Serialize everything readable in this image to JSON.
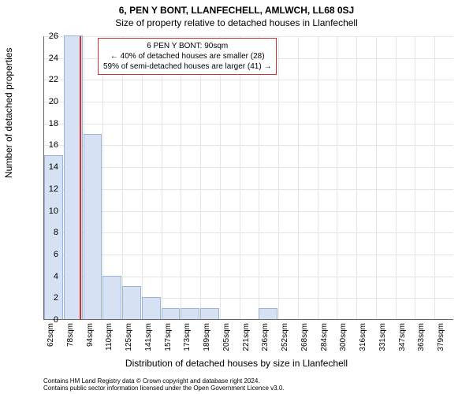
{
  "title_main": "6, PEN Y BONT, LLANFECHELL, AMLWCH, LL68 0SJ",
  "title_sub": "Size of property relative to detached houses in Llanfechell",
  "ylabel": "Number of detached properties",
  "xlabel": "Distribution of detached houses by size in Llanfechell",
  "histogram": {
    "type": "histogram",
    "ymin": 0,
    "ymax": 26,
    "ytick_step": 2,
    "categories": [
      "62sqm",
      "78sqm",
      "94sqm",
      "110sqm",
      "125sqm",
      "141sqm",
      "157sqm",
      "173sqm",
      "189sqm",
      "205sqm",
      "221sqm",
      "236sqm",
      "252sqm",
      "268sqm",
      "284sqm",
      "300sqm",
      "316sqm",
      "331sqm",
      "347sqm",
      "363sqm",
      "379sqm"
    ],
    "values": [
      15,
      26,
      17,
      4,
      3,
      2,
      1,
      1,
      1,
      0,
      0,
      1,
      0,
      0,
      0,
      0,
      0,
      0,
      0,
      0,
      0
    ],
    "bar_fill": "#d6e2f3",
    "bar_stroke": "#98b4de",
    "grid_color": "#e5e5e5",
    "background_color": "#ffffff",
    "marker": {
      "index_position": 1.8,
      "color": "#cc3333"
    },
    "annotation": {
      "line1": "6 PEN Y BONT: 90sqm",
      "line2": "← 40% of detached houses are smaller (28)",
      "line3": "59% of semi-detached houses are larger (41) →",
      "border_color": "#cc3333"
    }
  },
  "footer_line1": "Contains HM Land Registry data © Crown copyright and database right 2024.",
  "footer_line2": "Contains public sector information licensed under the Open Government Licence v3.0."
}
